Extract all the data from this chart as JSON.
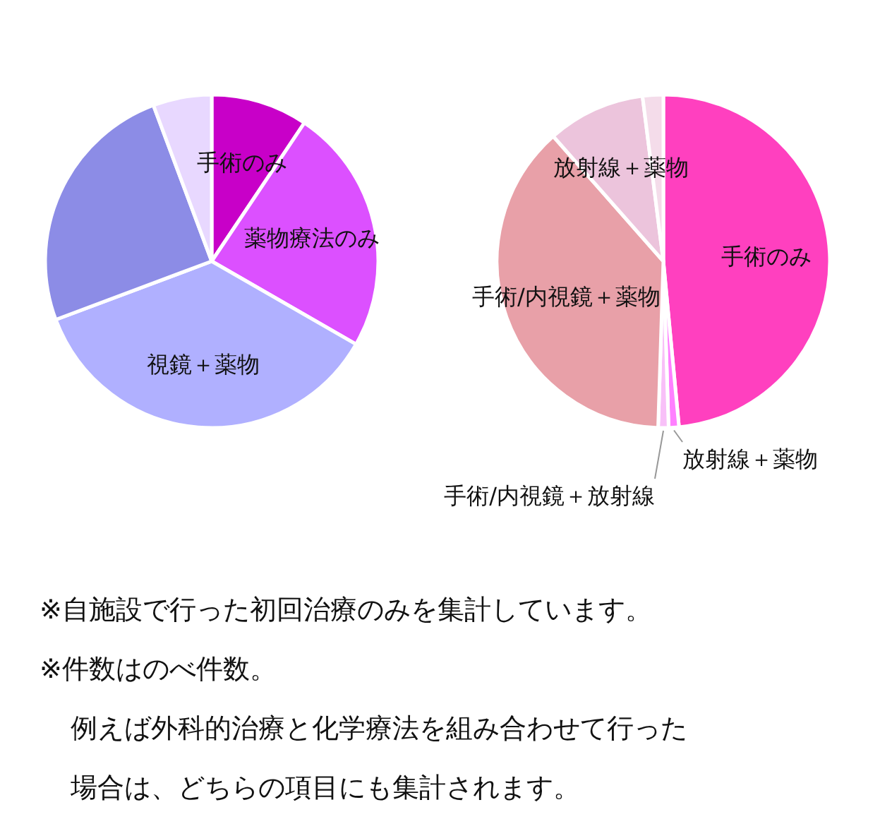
{
  "chart_data": [
    {
      "type": "pie",
      "categories": [
        "手術のみ",
        "薬物療法のみ",
        "視鏡＋薬物",
        null,
        null
      ],
      "values": [
        9.4,
        23.9,
        36,
        25,
        5.7
      ],
      "colors": [
        "#c800c8",
        "#dc50ff",
        "#b0b0ff",
        "#8c8ce6",
        "#e8d8ff"
      ],
      "annotations": [
        "※自施設で行った初回治療のみを集計しています。",
        "※件数はのべ件数。",
        "例えば外科的治療と化学療法を組み合わせて行った",
        "場合は、どちらの項目にも集計されます。"
      ]
    },
    {
      "type": "pie",
      "categories": [
        "手術のみ",
        "放射線＋薬物",
        "手術/内視鏡＋放射線",
        "手術/内視鏡＋薬物",
        "放射線＋薬物",
        null
      ],
      "values": [
        48.5,
        1,
        1,
        38,
        9.5,
        2
      ],
      "colors": [
        "#ff40bf",
        "#ff80ff",
        "#f8c0f8",
        "#e8a0a8",
        "#ecc4dc",
        "#f4dcea"
      ]
    }
  ]
}
